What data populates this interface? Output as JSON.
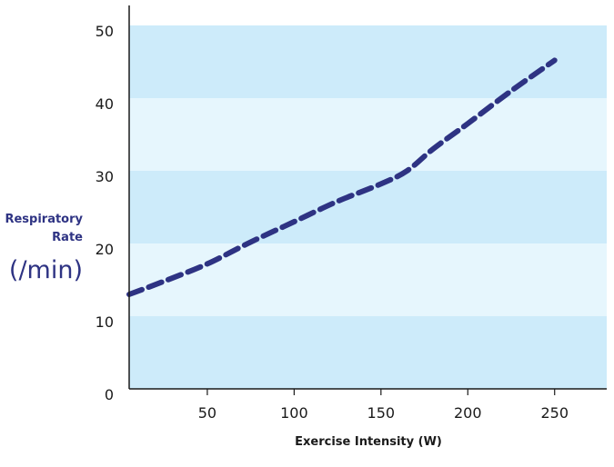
{
  "colors": {
    "band_dark": "#cdebfa",
    "band_light": "#e6f6fd",
    "axis": "#1a1a1a",
    "line": "#2e3383",
    "ylabel": "#2e3383"
  },
  "chart_data": {
    "type": "line",
    "title": "",
    "xlabel": "Exercise Intensity (W)",
    "ylabel": "Respiratory Rate",
    "ylabel_line1": "Respiratory",
    "ylabel_line2": "Rate",
    "ylabel_unit": "(/min)",
    "xlim": [
      5,
      280
    ],
    "ylim": [
      0,
      50
    ],
    "x_ticks": [
      50,
      100,
      150,
      200,
      250
    ],
    "x_tick_labels": [
      "50",
      "100",
      "150",
      "200",
      "250"
    ],
    "y_ticks": [
      0,
      10,
      20,
      30,
      40,
      50
    ],
    "y_tick_labels": [
      "0",
      "10",
      "20",
      "30",
      "40",
      "50"
    ],
    "background_bands": true,
    "grid": false,
    "series": [
      {
        "line_style": "dashed",
        "x": [
          5,
          25,
          50,
          75,
          100,
          125,
          150,
          165,
          180,
          200,
          225,
          250
        ],
        "y": [
          13,
          14.8,
          17.2,
          20.2,
          23,
          25.8,
          28.2,
          30,
          33,
          36.5,
          41,
          45.2
        ]
      }
    ]
  }
}
